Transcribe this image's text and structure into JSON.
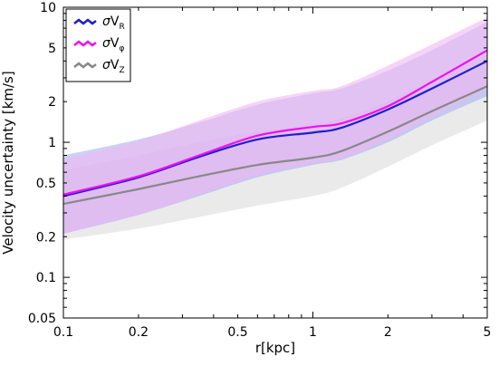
{
  "chart_data": {
    "type": "line",
    "xlabel": "r[kpc]",
    "ylabel": "Velocity uncertainty [km/s]",
    "xscale": "log",
    "yscale": "log",
    "xlim": [
      0.1,
      5
    ],
    "ylim": [
      0.05,
      10
    ],
    "x_ticks": [
      {
        "value": 0.1,
        "label": "0.1"
      },
      {
        "value": 0.2,
        "label": "0.2"
      },
      {
        "value": 0.5,
        "label": "0.5"
      },
      {
        "value": 1,
        "label": "1"
      },
      {
        "value": 2,
        "label": "2"
      },
      {
        "value": 5,
        "label": "5"
      }
    ],
    "y_ticks": [
      {
        "value": 0.05,
        "label": "0.05"
      },
      {
        "value": 0.1,
        "label": "0.1"
      },
      {
        "value": 0.2,
        "label": "0.2"
      },
      {
        "value": 0.5,
        "label": "0.5"
      },
      {
        "value": 1,
        "label": "1"
      },
      {
        "value": 2,
        "label": "2"
      },
      {
        "value": 5,
        "label": "5"
      },
      {
        "value": 10,
        "label": "10"
      }
    ],
    "legend_position": "top-left",
    "grid": false,
    "series": [
      {
        "name": "σV_R",
        "symbol": "σ",
        "label_main": "V",
        "label_sub": "R",
        "color": "#1f1fcc",
        "band_color": "#a9b2f0",
        "x": [
          0.1,
          0.2,
          0.35,
          0.6,
          1.0,
          1.3,
          2.0,
          3.0,
          5.0
        ],
        "y": [
          0.4,
          0.55,
          0.78,
          1.05,
          1.18,
          1.28,
          1.75,
          2.5,
          4.0
        ],
        "lower": [
          0.21,
          0.29,
          0.4,
          0.55,
          0.68,
          0.74,
          1.0,
          1.45,
          2.2
        ],
        "upper": [
          0.8,
          1.05,
          1.4,
          1.9,
          2.3,
          2.5,
          3.4,
          4.8,
          7.8
        ]
      },
      {
        "name": "σV_φ",
        "symbol": "σ",
        "label_main": "V",
        "label_sub": "φ",
        "color": "#ee11ee",
        "band_color": "#f2b6f2",
        "x": [
          0.1,
          0.2,
          0.35,
          0.6,
          1.0,
          1.3,
          2.0,
          3.0,
          5.0
        ],
        "y": [
          0.41,
          0.56,
          0.8,
          1.12,
          1.3,
          1.38,
          1.85,
          2.8,
          4.8
        ],
        "lower": [
          0.21,
          0.29,
          0.41,
          0.57,
          0.7,
          0.76,
          1.05,
          1.55,
          2.5
        ],
        "upper": [
          0.75,
          1.02,
          1.45,
          2.0,
          2.4,
          2.6,
          3.7,
          5.3,
          8.4
        ]
      },
      {
        "name": "σV_Z",
        "symbol": "σ",
        "label_main": "V",
        "label_sub": "Z",
        "color": "#888888",
        "band_color": "#e6e6e6",
        "x": [
          0.1,
          0.2,
          0.35,
          0.6,
          1.0,
          1.3,
          2.0,
          3.0,
          5.0
        ],
        "y": [
          0.35,
          0.45,
          0.56,
          0.68,
          0.77,
          0.86,
          1.2,
          1.7,
          2.6
        ],
        "lower": [
          0.19,
          0.23,
          0.28,
          0.34,
          0.4,
          0.46,
          0.66,
          0.95,
          1.45
        ],
        "upper": [
          0.62,
          0.8,
          1.0,
          1.2,
          1.35,
          1.5,
          2.0,
          2.9,
          4.5
        ]
      }
    ]
  }
}
